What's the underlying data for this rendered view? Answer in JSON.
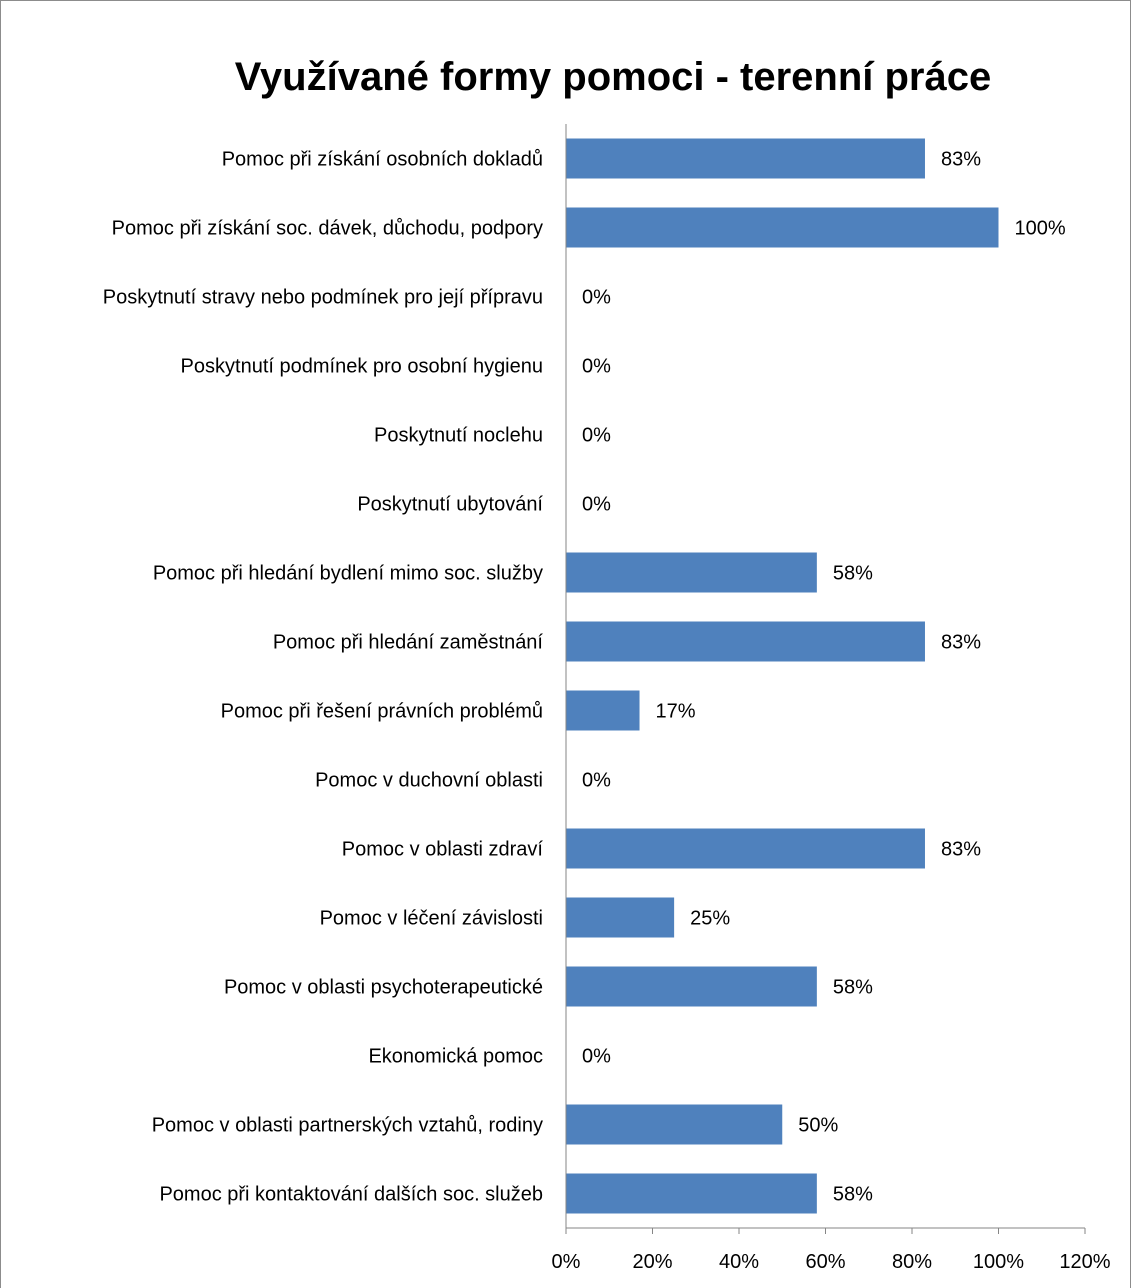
{
  "chart_data": {
    "type": "bar",
    "orientation": "horizontal",
    "title": "Využívané formy pomoci - terenní práce",
    "categories": [
      "Pomoc při získání osobních dokladů",
      "Pomoc při získání soc. dávek, důchodu, podpory",
      "Poskytnutí stravy nebo podmínek pro její přípravu",
      "Poskytnutí podmínek pro osobní hygienu",
      "Poskytnutí noclehu",
      "Poskytnutí ubytování",
      "Pomoc při hledání bydlení mimo soc. služby",
      "Pomoc při hledání zaměstnání",
      "Pomoc při řešení právních problémů",
      "Pomoc v duchovní oblasti",
      "Pomoc v oblasti zdraví",
      "Pomoc v léčení závislosti",
      "Pomoc v oblasti psychoterapeutické",
      "Ekonomická pomoc",
      "Pomoc v oblasti partnerských vztahů, rodiny",
      "Pomoc při kontaktování dalších soc. služeb"
    ],
    "values": [
      83,
      100,
      0,
      0,
      0,
      0,
      58,
      83,
      17,
      0,
      83,
      25,
      58,
      0,
      50,
      58
    ],
    "data_labels": [
      "83%",
      "100%",
      "0%",
      "0%",
      "0%",
      "0%",
      "58%",
      "83%",
      "17%",
      "0%",
      "83%",
      "25%",
      "58%",
      "0%",
      "50%",
      "58%"
    ],
    "xlim": [
      0,
      120
    ],
    "x_ticks": [
      "0%",
      "20%",
      "40%",
      "60%",
      "80%",
      "100%",
      "120%"
    ],
    "grid": false,
    "legend": "none",
    "bar_color": "#4f81bd",
    "axis_color": "#868686"
  }
}
